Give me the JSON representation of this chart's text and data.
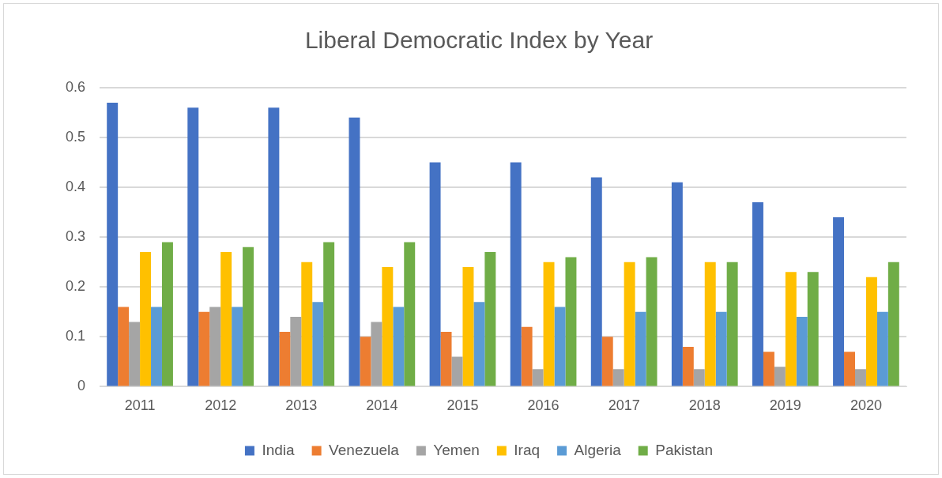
{
  "chart_data": {
    "type": "bar",
    "title": "Liberal Democratic Index by Year",
    "categories": [
      "2011",
      "2012",
      "2013",
      "2014",
      "2015",
      "2016",
      "2017",
      "2018",
      "2019",
      "2020"
    ],
    "series": [
      {
        "name": "India",
        "color": "#4472c4",
        "values": [
          0.57,
          0.56,
          0.56,
          0.54,
          0.45,
          0.45,
          0.42,
          0.41,
          0.37,
          0.34
        ]
      },
      {
        "name": "Venezuela",
        "color": "#ed7d31",
        "values": [
          0.16,
          0.15,
          0.11,
          0.1,
          0.11,
          0.12,
          0.1,
          0.08,
          0.07,
          0.07
        ]
      },
      {
        "name": "Yemen",
        "color": "#a5a5a5",
        "values": [
          0.13,
          0.16,
          0.14,
          0.13,
          0.06,
          0.035,
          0.035,
          0.035,
          0.04,
          0.035
        ]
      },
      {
        "name": "Iraq",
        "color": "#ffc000",
        "values": [
          0.27,
          0.27,
          0.25,
          0.24,
          0.24,
          0.25,
          0.25,
          0.25,
          0.23,
          0.22
        ]
      },
      {
        "name": "Algeria",
        "color": "#5b9bd5",
        "values": [
          0.16,
          0.16,
          0.17,
          0.16,
          0.17,
          0.16,
          0.15,
          0.15,
          0.14,
          0.15
        ]
      },
      {
        "name": "Pakistan",
        "color": "#70ad47",
        "values": [
          0.29,
          0.28,
          0.29,
          0.29,
          0.27,
          0.26,
          0.26,
          0.25,
          0.23,
          0.25
        ]
      }
    ],
    "ylim": [
      0,
      0.6
    ],
    "yticks": [
      0,
      0.1,
      0.2,
      0.3,
      0.4,
      0.5,
      0.6
    ],
    "grid": "y",
    "legend": "bottom"
  }
}
